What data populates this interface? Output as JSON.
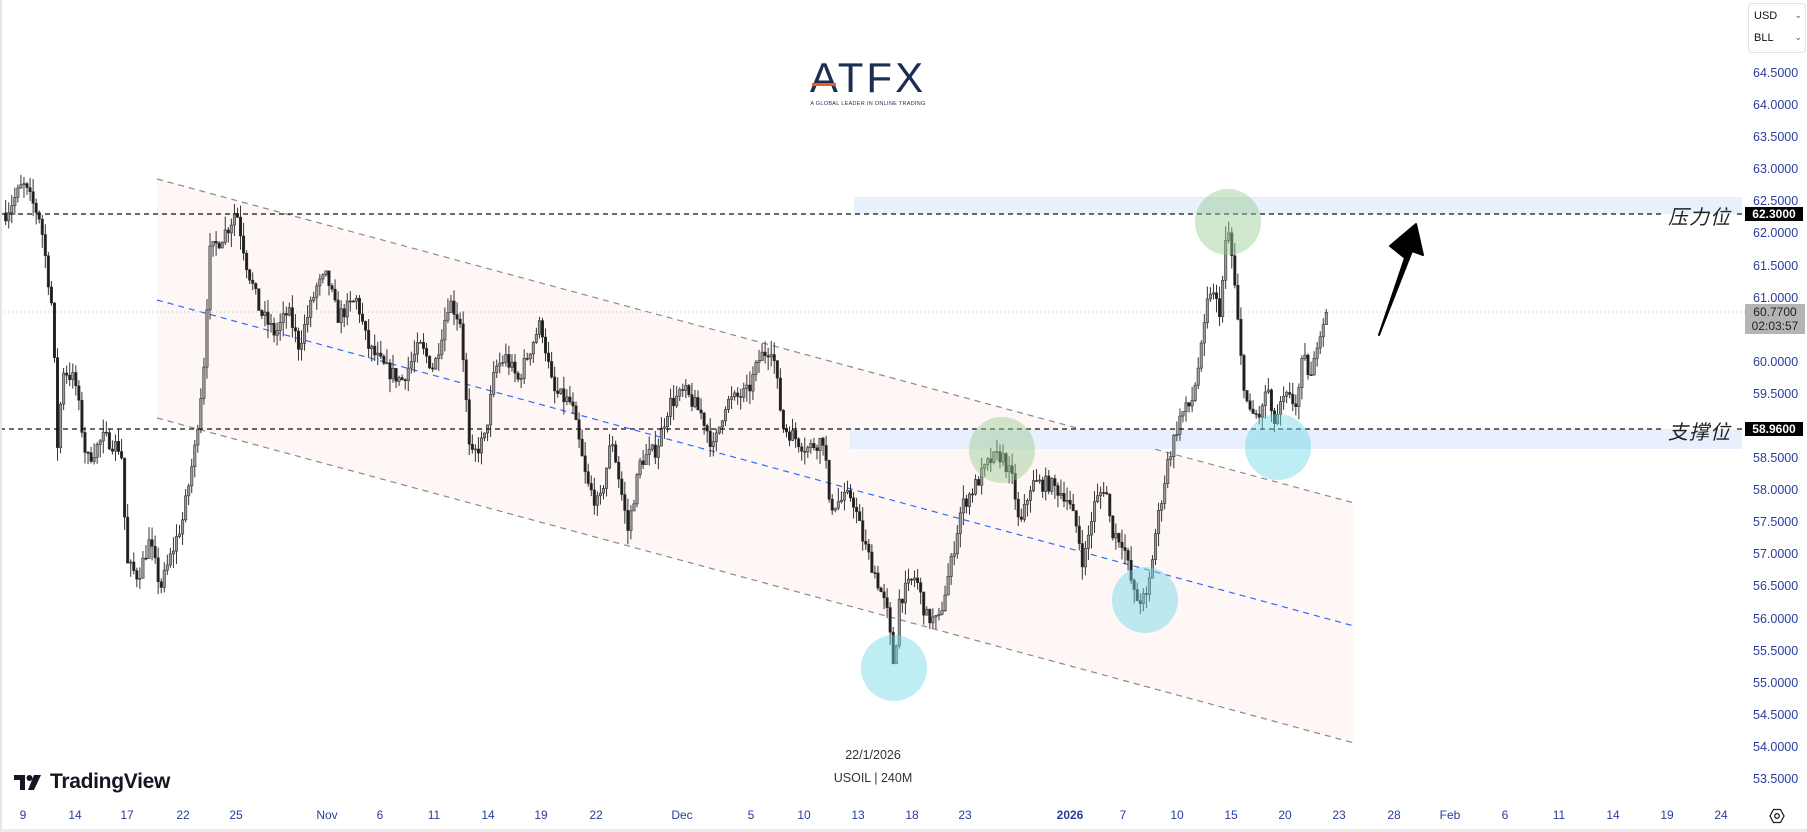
{
  "header": {
    "currency": "USD",
    "unit": "BLL"
  },
  "logo": {
    "brand": "ATFX",
    "tagline": "A GLOBAL LEADER IN ONLINE TRADING"
  },
  "watermark": {
    "brand": "TradingView",
    "date": "22/1/2026",
    "symbol": "USOIL | 240M"
  },
  "annotations": {
    "resistance_label": "压力位",
    "support_label": "支撑位",
    "resistance_price": "62.3000",
    "support_price": "58.9600",
    "last_price": "60.7700",
    "countdown": "02:03:57"
  },
  "price_axis": {
    "labels": [
      "64.5000",
      "64.0000",
      "63.5000",
      "63.0000",
      "62.5000",
      "62.0000",
      "61.5000",
      "61.0000",
      "60.0000",
      "59.5000",
      "58.5000",
      "58.0000",
      "57.5000",
      "57.0000",
      "56.5000",
      "56.0000",
      "55.5000",
      "55.0000",
      "54.5000",
      "54.0000",
      "53.5000"
    ]
  },
  "time_axis": {
    "labels": [
      "9",
      "14",
      "17",
      "22",
      "25",
      "Nov",
      "6",
      "11",
      "14",
      "19",
      "22",
      "Dec",
      "5",
      "10",
      "13",
      "18",
      "23",
      "2026",
      "7",
      "10",
      "15",
      "20",
      "23",
      "28",
      "Feb",
      "6",
      "11",
      "14",
      "19",
      "24"
    ]
  },
  "colors": {
    "axis_text": "#2a3d9c",
    "channel_fill": "#fff6f6",
    "channel_mid": "#2f6bff",
    "zone_fill": "#e8effd",
    "circle_green": "#a9d8a6",
    "circle_cyan": "#8fdbe8"
  },
  "chart_data": {
    "type": "candlestick",
    "symbol": "USOIL",
    "interval": "240M",
    "ylim": [
      53.3,
      64.8
    ],
    "grid": false,
    "levels": {
      "resistance": 62.3,
      "support": 58.96,
      "last": 60.77
    },
    "zones": [
      {
        "name": "resistance-zone",
        "from": 62.3,
        "to": 62.55
      },
      {
        "name": "support-zone",
        "from": 58.66,
        "to": 58.96
      }
    ],
    "close_path": [
      [
        "2025-10-07T08:00",
        62.32
      ],
      [
        "2025-10-09T00:00",
        62.76
      ],
      [
        "2025-10-10T16:00",
        62.23
      ],
      [
        "2025-10-11T20:00",
        60.79
      ],
      [
        "2025-10-12T08:00",
        58.64
      ],
      [
        "2025-10-12T20:00",
        59.89
      ],
      [
        "2025-10-14T00:00",
        59.71
      ],
      [
        "2025-10-14T16:00",
        58.46
      ],
      [
        "2025-10-15T16:00",
        58.82
      ],
      [
        "2025-10-16T16:00",
        58.64
      ],
      [
        "2025-10-17T00:00",
        56.84
      ],
      [
        "2025-10-18T00:00",
        56.66
      ],
      [
        "2025-10-19T00:00",
        57.2
      ],
      [
        "2025-10-20T00:00",
        56.48
      ],
      [
        "2025-10-21T00:00",
        57.02
      ],
      [
        "2025-10-22T00:00",
        57.56
      ],
      [
        "2025-10-22T16:00",
        58.64
      ],
      [
        "2025-10-23T04:00",
        59.89
      ],
      [
        "2025-10-23T12:00",
        61.69
      ],
      [
        "2025-10-24T00:00",
        61.87
      ],
      [
        "2025-10-24T16:00",
        62.14
      ],
      [
        "2025-10-25T00:00",
        62.4
      ],
      [
        "2025-10-25T20:00",
        61.51
      ],
      [
        "2025-10-26T20:00",
        60.79
      ],
      [
        "2025-10-28T00:00",
        60.43
      ],
      [
        "2025-10-29T00:00",
        60.79
      ],
      [
        "2025-10-29T20:00",
        60.25
      ],
      [
        "2025-10-31T04:00",
        61.15
      ],
      [
        "2025-11-01T00:00",
        61.33
      ],
      [
        "2025-11-02T00:00",
        60.7
      ],
      [
        "2025-11-03T20:00",
        60.97
      ],
      [
        "2025-11-04T20:00",
        60.25
      ],
      [
        "2025-11-06T12:00",
        59.89
      ],
      [
        "2025-11-08T00:00",
        59.71
      ],
      [
        "2025-11-09T16:00",
        60.25
      ],
      [
        "2025-11-11T00:00",
        59.89
      ],
      [
        "2025-11-11T20:00",
        60.97
      ],
      [
        "2025-11-12T12:00",
        60.61
      ],
      [
        "2025-11-13T00:00",
        58.46
      ],
      [
        "2025-11-13T20:00",
        58.82
      ],
      [
        "2025-11-14T16:00",
        59.89
      ],
      [
        "2025-11-15T16:00",
        60.07
      ],
      [
        "2025-11-16T20:00",
        59.71
      ],
      [
        "2025-11-18T12:00",
        60.43
      ],
      [
        "2025-11-19T00:00",
        60.61
      ],
      [
        "2025-11-19T16:00",
        59.53
      ],
      [
        "2025-11-20T16:00",
        59.35
      ],
      [
        "2025-11-21T12:00",
        58.1
      ],
      [
        "2025-11-22T08:00",
        57.74
      ],
      [
        "2025-11-23T16:00",
        58.82
      ],
      [
        "2025-11-25T08:00",
        57.38
      ],
      [
        "2025-11-26T16:00",
        58.46
      ],
      [
        "2025-11-28T08:00",
        58.64
      ],
      [
        "2025-11-29T16:00",
        59.35
      ],
      [
        "2025-12-01T04:00",
        59.53
      ],
      [
        "2025-12-02T04:00",
        59.17
      ],
      [
        "2025-12-02T20:00",
        58.64
      ],
      [
        "2025-12-03T12:00",
        59.35
      ],
      [
        "2025-12-04T20:00",
        59.53
      ],
      [
        "2025-12-05T20:00",
        60.07
      ],
      [
        "2025-12-07T00:00",
        60.25
      ],
      [
        "2025-12-08T00:00",
        58.99
      ],
      [
        "2025-12-09T04:00",
        58.82
      ],
      [
        "2025-12-10T04:00",
        58.64
      ],
      [
        "2025-12-11T04:00",
        58.82
      ],
      [
        "2025-12-11T08:00",
        57.74
      ],
      [
        "2025-12-12T16:00",
        57.92
      ],
      [
        "2025-12-13T12:00",
        57.2
      ],
      [
        "2025-12-14T16:00",
        56.66
      ],
      [
        "2025-12-15T16:00",
        56.12
      ],
      [
        "2025-12-16T08:00",
        55.23
      ],
      [
        "2025-12-16T20:00",
        56.3
      ],
      [
        "2025-12-18T08:00",
        56.66
      ],
      [
        "2025-12-19T08:00",
        56.03
      ],
      [
        "2025-12-20T12:00",
        55.94
      ],
      [
        "2025-12-21T16:00",
        56.84
      ],
      [
        "2025-12-22T16:00",
        57.74
      ],
      [
        "2025-12-23T16:00",
        58.01
      ],
      [
        "2025-12-25T04:00",
        58.46
      ],
      [
        "2025-12-26T04:00",
        58.55
      ],
      [
        "2025-12-27T04:00",
        58.1
      ],
      [
        "2025-12-27T16:00",
        57.38
      ],
      [
        "2025-12-28T16:00",
        58.1
      ],
      [
        "2025-12-30T04:00",
        58.1
      ],
      [
        "2025-12-31T16:00",
        57.92
      ],
      [
        "2026-01-01T20:00",
        57.38
      ],
      [
        "2026-01-02T12:00",
        56.84
      ],
      [
        "2026-01-03T16:00",
        57.74
      ],
      [
        "2026-01-05T00:00",
        58.1
      ],
      [
        "2026-01-05T16:00",
        57.38
      ],
      [
        "2026-01-07T00:00",
        57.2
      ],
      [
        "2026-01-07T16:00",
        56.3
      ],
      [
        "2026-01-08T08:00",
        56.3
      ],
      [
        "2026-01-08T20:00",
        57.38
      ],
      [
        "2026-01-09T12:00",
        58.46
      ],
      [
        "2026-01-10T08:00",
        59.17
      ],
      [
        "2026-01-11T08:00",
        59.35
      ],
      [
        "2026-01-12T08:00",
        60.25
      ],
      [
        "2026-01-13T00:00",
        61.15
      ],
      [
        "2026-01-14T00:00",
        60.79
      ],
      [
        "2026-01-14T16:00",
        62.14
      ],
      [
        "2026-01-15T04:00",
        61.51
      ],
      [
        "2026-01-16T00:00",
        59.89
      ],
      [
        "2026-01-16T16:00",
        59.17
      ],
      [
        "2026-01-17T20:00",
        59.17
      ],
      [
        "2026-01-18T08:00",
        59.71
      ],
      [
        "2026-01-18T20:00",
        58.99
      ],
      [
        "2026-01-20T00:00",
        59.44
      ],
      [
        "2026-01-20T16:00",
        59.35
      ],
      [
        "2026-01-21T00:00",
        60.07
      ],
      [
        "2026-01-21T12:00",
        59.71
      ],
      [
        "2026-01-21T20:00",
        60.43
      ],
      [
        "2026-01-22T08:00",
        60.77
      ]
    ]
  }
}
